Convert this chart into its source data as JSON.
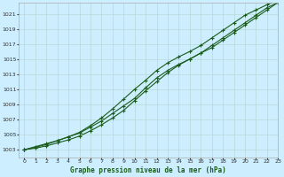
{
  "title": "Graphe pression niveau de la mer (hPa)",
  "bg_color": "#cceeff",
  "grid_color": "#b8d8d8",
  "line_color": "#1a5c1a",
  "xlim": [
    -0.5,
    23
  ],
  "ylim": [
    1002,
    1022.5
  ],
  "xticks": [
    0,
    1,
    2,
    3,
    4,
    5,
    6,
    7,
    8,
    9,
    10,
    11,
    12,
    13,
    14,
    15,
    16,
    17,
    18,
    19,
    20,
    21,
    22,
    23
  ],
  "yticks": [
    1003,
    1005,
    1007,
    1009,
    1011,
    1013,
    1015,
    1017,
    1019,
    1021
  ],
  "line1_x": [
    0,
    1,
    2,
    3,
    4,
    5,
    6,
    7,
    8,
    9,
    10,
    11,
    12,
    13,
    14,
    15,
    16,
    17,
    18,
    19,
    20,
    21,
    22,
    23
  ],
  "line1_y": [
    1003.0,
    1003.4,
    1003.8,
    1004.2,
    1004.7,
    1005.2,
    1006.0,
    1006.8,
    1007.8,
    1008.8,
    1009.8,
    1011.2,
    1012.5,
    1013.5,
    1014.3,
    1015.0,
    1015.8,
    1016.5,
    1017.5,
    1018.5,
    1019.5,
    1020.5,
    1021.5,
    1022.5
  ],
  "line2_x": [
    0,
    1,
    2,
    3,
    4,
    5,
    6,
    7,
    8,
    9,
    10,
    11,
    12,
    13,
    14,
    15,
    16,
    17,
    18,
    19,
    20,
    21,
    22,
    23
  ],
  "line2_y": [
    1003.0,
    1003.2,
    1003.5,
    1003.9,
    1004.3,
    1004.8,
    1005.5,
    1006.3,
    1007.2,
    1008.2,
    1009.5,
    1010.8,
    1012.0,
    1013.2,
    1014.2,
    1015.0,
    1015.8,
    1016.8,
    1017.8,
    1018.8,
    1019.8,
    1020.8,
    1021.8,
    1022.5
  ],
  "line3_x": [
    0,
    1,
    2,
    3,
    4,
    5,
    6,
    7,
    8,
    9,
    10,
    11,
    12,
    13,
    14,
    15,
    16,
    17,
    18,
    19,
    20,
    21,
    22,
    23
  ],
  "line3_y": [
    1003.0,
    1003.3,
    1003.7,
    1004.2,
    1004.7,
    1005.3,
    1006.2,
    1007.2,
    1008.4,
    1009.7,
    1011.0,
    1012.2,
    1013.5,
    1014.5,
    1015.3,
    1016.0,
    1016.8,
    1017.8,
    1018.8,
    1019.8,
    1020.8,
    1021.5,
    1022.2,
    1022.8
  ]
}
